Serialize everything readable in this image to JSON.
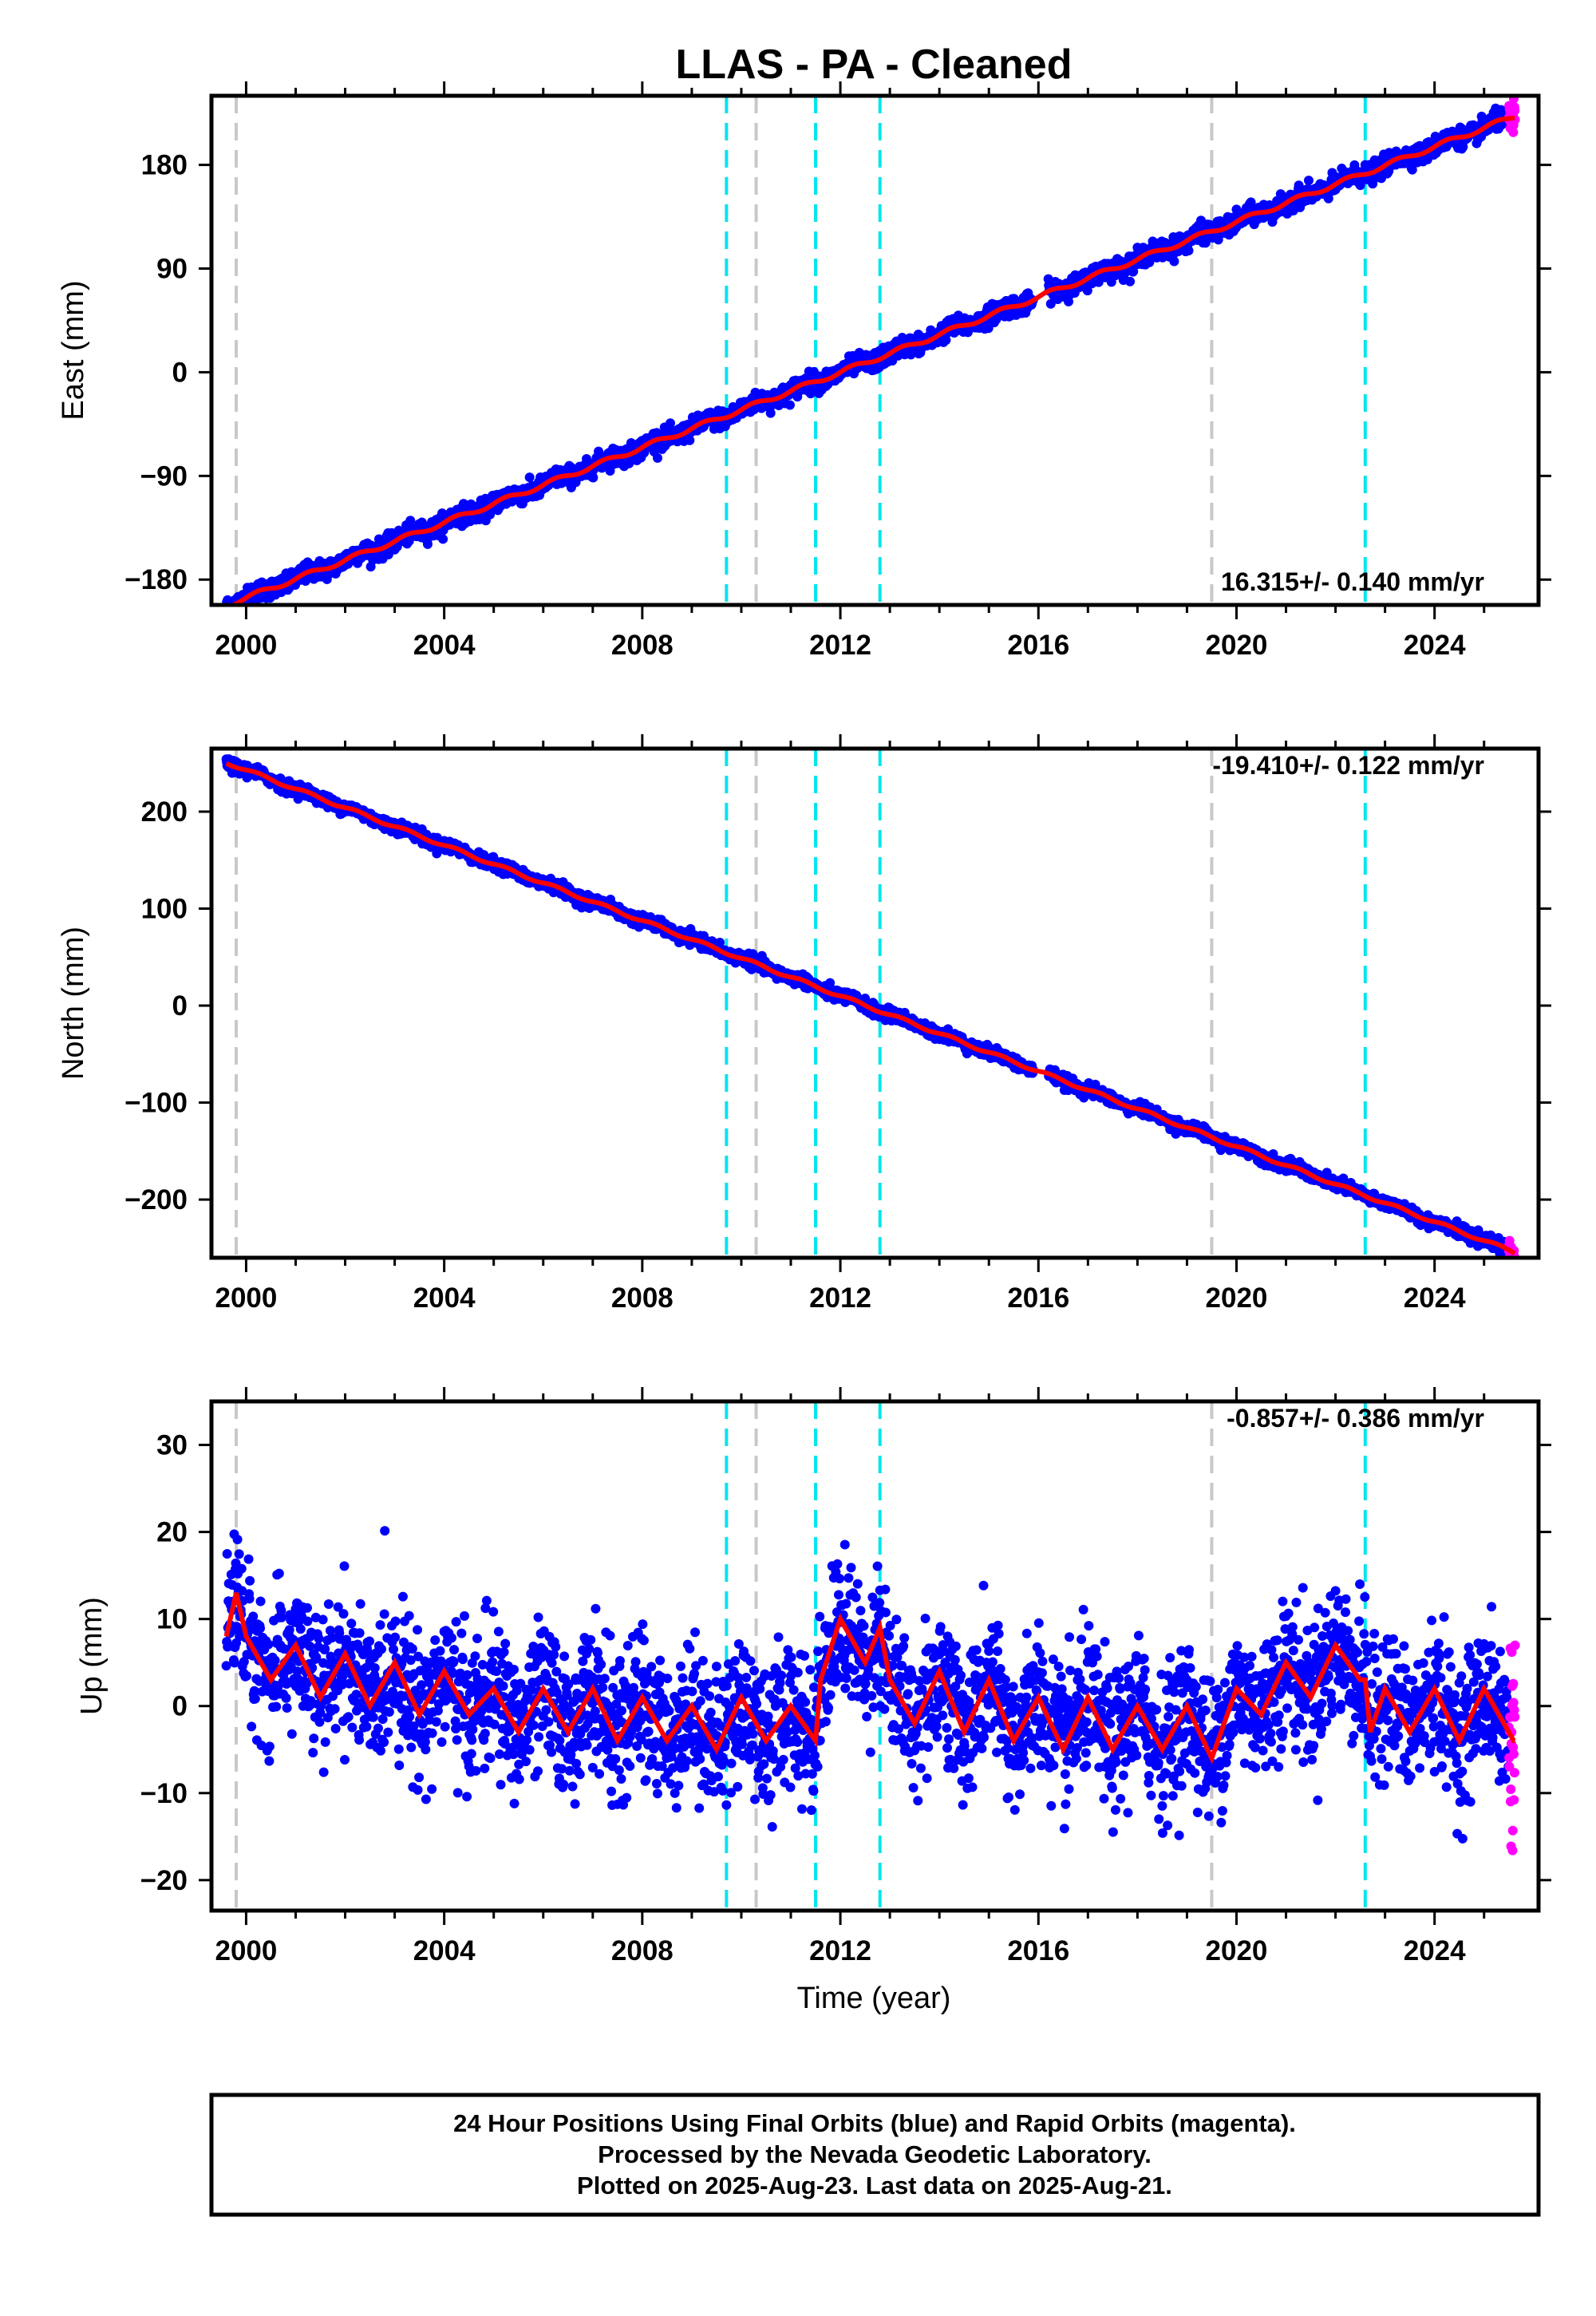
{
  "title": "LLAS  - PA - Cleaned",
  "xlabel": "Time (year)",
  "footer": [
    "24 Hour Positions Using Final Orbits (blue) and Rapid Orbits (magenta).",
    "Processed by the Nevada Geodetic Laboratory.",
    "Plotted on 2025-Aug-23. Last data on 2025-Aug-21."
  ],
  "colors": {
    "final": "#0000ff",
    "rapid": "#ff00ff",
    "model": "#ff0000",
    "equipment_change": "#c8c8c8",
    "earthquake": "#00e5ee"
  },
  "chart_data": [
    {
      "type": "scatter",
      "component": "east",
      "ylabel": "East (mm)",
      "rate_label": "16.315+/- 0.140 mm/yr",
      "xlim": [
        1999.3,
        2026.1
      ],
      "ylim": [
        -202,
        240
      ],
      "xticks": [
        2000,
        2004,
        2008,
        2012,
        2016,
        2020,
        2024
      ],
      "yticks": [
        -180,
        -90,
        0,
        90,
        180
      ],
      "grey_lines": [
        1999.8,
        2010.3,
        2019.5
      ],
      "cyan_lines": [
        2009.7,
        2011.5,
        2012.8,
        2022.6
      ],
      "trend": {
        "t0": 2012.0,
        "offset": 0.0,
        "rate": 16.315
      },
      "start": 1999.6,
      "end_final": 2025.5,
      "end": 2025.63,
      "noise": 4,
      "seasonal": 2
    },
    {
      "type": "scatter",
      "component": "north",
      "ylabel": "North (mm)",
      "rate_label": "-19.410+/- 0.122 mm/yr",
      "xlim": [
        1999.3,
        2026.1
      ],
      "ylim": [
        -260,
        265
      ],
      "xticks": [
        2000,
        2004,
        2008,
        2012,
        2016,
        2020,
        2024
      ],
      "yticks": [
        -200,
        -100,
        0,
        100,
        200
      ],
      "grey_lines": [
        1999.8,
        2010.3,
        2019.5
      ],
      "cyan_lines": [
        2009.7,
        2011.5,
        2012.8,
        2022.6
      ],
      "trend": {
        "t0": 2012.0,
        "offset": 10.0,
        "rate": -19.41
      },
      "start": 1999.6,
      "end_final": 2025.5,
      "end": 2025.63,
      "noise": 3,
      "seasonal": 1.5
    },
    {
      "type": "scatter",
      "component": "up",
      "ylabel": "Up (mm)",
      "rate_label": "-0.857+/- 0.386 mm/yr",
      "xlim": [
        1999.3,
        2026.1
      ],
      "ylim": [
        -23.5,
        35
      ],
      "xticks": [
        2000,
        2004,
        2008,
        2012,
        2016,
        2020,
        2024
      ],
      "yticks": [
        -20,
        -10,
        0,
        10,
        20,
        30
      ],
      "grey_lines": [
        1999.8,
        2010.3,
        2019.5
      ],
      "cyan_lines": [
        2009.7,
        2011.5,
        2012.8,
        2022.6
      ],
      "trend": {
        "t0": 2012.0,
        "offset": 0.0,
        "rate": -0.857
      },
      "start": 1999.6,
      "end_final": 2025.5,
      "end": 2025.63,
      "noise": 4,
      "seasonal": 4,
      "model_knots": [
        [
          1999.6,
          8
        ],
        [
          1999.8,
          13
        ],
        [
          2000.0,
          8
        ],
        [
          2000.5,
          3
        ],
        [
          2001.0,
          7
        ],
        [
          2001.5,
          1
        ],
        [
          2002.0,
          6
        ],
        [
          2002.5,
          0
        ],
        [
          2003.0,
          5
        ],
        [
          2003.5,
          -1
        ],
        [
          2004.0,
          4
        ],
        [
          2004.5,
          -1
        ],
        [
          2005.0,
          2
        ],
        [
          2005.5,
          -3
        ],
        [
          2006.0,
          2
        ],
        [
          2006.5,
          -3
        ],
        [
          2007.0,
          2
        ],
        [
          2007.5,
          -4
        ],
        [
          2008.0,
          1
        ],
        [
          2008.5,
          -4
        ],
        [
          2009.0,
          0
        ],
        [
          2009.5,
          -5
        ],
        [
          2010.0,
          1
        ],
        [
          2010.5,
          -4
        ],
        [
          2011.0,
          0
        ],
        [
          2011.5,
          -4
        ],
        [
          2011.6,
          3
        ],
        [
          2012.0,
          10
        ],
        [
          2012.5,
          5
        ],
        [
          2012.8,
          9
        ],
        [
          2013.0,
          3
        ],
        [
          2013.5,
          -2
        ],
        [
          2014.0,
          4
        ],
        [
          2014.5,
          -3
        ],
        [
          2015.0,
          3
        ],
        [
          2015.5,
          -4
        ],
        [
          2016.0,
          1
        ],
        [
          2016.5,
          -5
        ],
        [
          2017.0,
          1
        ],
        [
          2017.5,
          -5
        ],
        [
          2018.0,
          0
        ],
        [
          2018.5,
          -5
        ],
        [
          2019.0,
          0
        ],
        [
          2019.5,
          -6
        ],
        [
          2020.0,
          2
        ],
        [
          2020.5,
          -1
        ],
        [
          2021.0,
          5
        ],
        [
          2021.5,
          1
        ],
        [
          2022.0,
          7
        ],
        [
          2022.5,
          3
        ],
        [
          2022.6,
          3
        ],
        [
          2022.7,
          -3
        ],
        [
          2023.0,
          2
        ],
        [
          2023.5,
          -3
        ],
        [
          2024.0,
          2
        ],
        [
          2024.5,
          -4
        ],
        [
          2025.0,
          2
        ],
        [
          2025.6,
          -4
        ]
      ]
    }
  ]
}
